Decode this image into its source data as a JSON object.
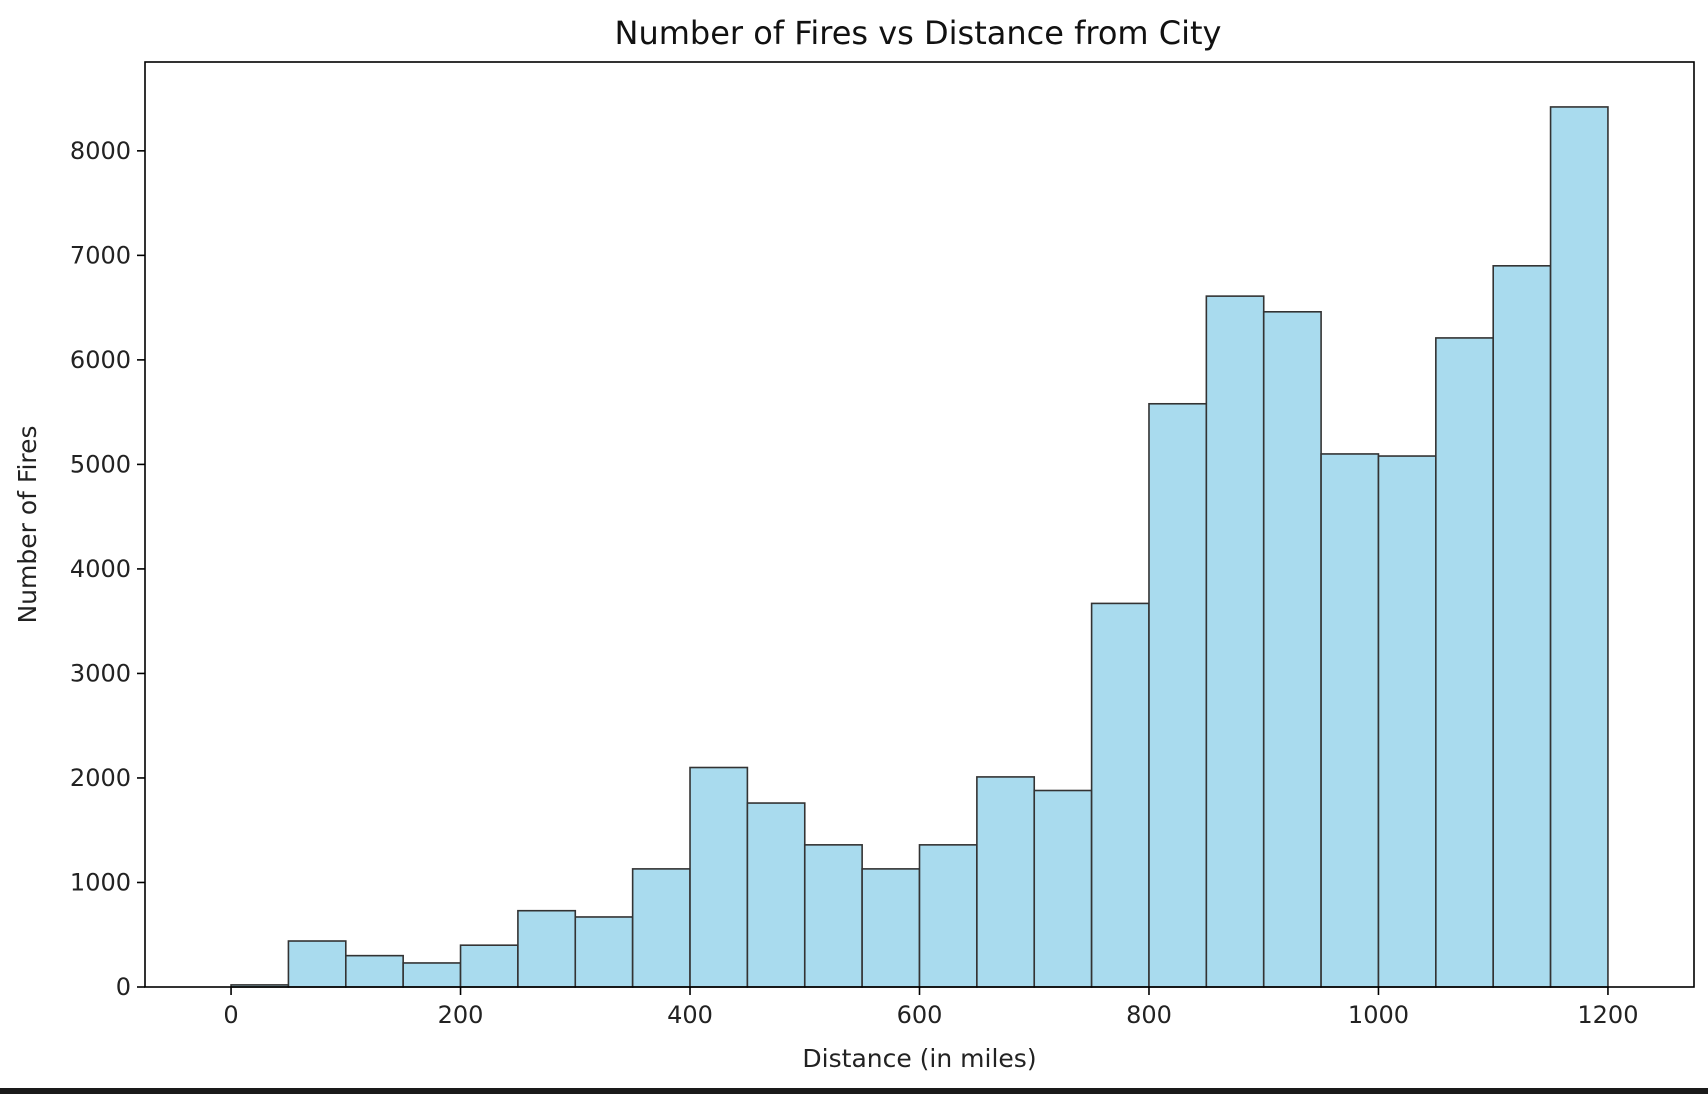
{
  "chart_data": {
    "type": "bar",
    "title": "Number of Fires vs Distance from City",
    "xlabel": "Distance (in miles)",
    "ylabel": "Number of Fires",
    "xlim": [
      -75,
      1275
    ],
    "ylim": [
      0,
      8850
    ],
    "bin_width": 50,
    "bin_starts": [
      0,
      50,
      100,
      150,
      200,
      250,
      300,
      350,
      400,
      450,
      500,
      550,
      600,
      650,
      700,
      750,
      800,
      850,
      900,
      950,
      1000,
      1050,
      1100,
      1150
    ],
    "values": [
      20,
      440,
      300,
      230,
      400,
      730,
      670,
      1130,
      2100,
      1760,
      1360,
      1130,
      1360,
      2010,
      1880,
      3670,
      5580,
      6610,
      6460,
      5100,
      5080,
      6210,
      6900,
      8420
    ],
    "x_ticks": [
      "0",
      "200",
      "400",
      "600",
      "800",
      "1000",
      "1200"
    ],
    "y_ticks": [
      "0",
      "1000",
      "2000",
      "3000",
      "4000",
      "5000",
      "6000",
      "7000",
      "8000"
    ],
    "grid": false,
    "colors": {
      "bar_fill": "#a9dbee",
      "bar_edge": "#333333",
      "axis": "#000000"
    }
  }
}
